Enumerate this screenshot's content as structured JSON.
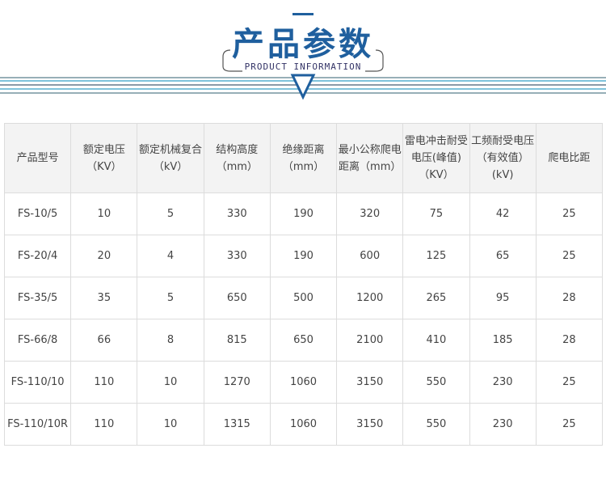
{
  "header": {
    "title": "产品参数",
    "subtitle": "PRODUCT INFORMATION"
  },
  "table": {
    "columns": [
      "产品型号",
      "额定电压（KV）",
      "额定机械复合（kV）",
      "结构高度（mm）",
      "绝缘距离（mm）",
      "最小公称爬电距离（mm）",
      "雷电冲击耐受电压(峰值)（KV）",
      "工频耐受电压（有效值）(kV)",
      "爬电比距"
    ],
    "rows": [
      [
        "FS-10/5",
        "10",
        "5",
        "330",
        "190",
        "320",
        "75",
        "42",
        "25"
      ],
      [
        "FS-20/4",
        "20",
        "4",
        "330",
        "190",
        "600",
        "125",
        "65",
        "25"
      ],
      [
        "FS-35/5",
        "35",
        "5",
        "650",
        "500",
        "1200",
        "265",
        "95",
        "28"
      ],
      [
        "FS-66/8",
        "66",
        "8",
        "815",
        "650",
        "2100",
        "410",
        "185",
        "28"
      ],
      [
        "FS-110/10",
        "110",
        "10",
        "1270",
        "1060",
        "3150",
        "550",
        "230",
        "25"
      ],
      [
        "FS-110/10R",
        "110",
        "10",
        "1315",
        "1060",
        "3150",
        "550",
        "230",
        "25"
      ]
    ]
  },
  "colors": {
    "accent": "#1f5f9e"
  }
}
